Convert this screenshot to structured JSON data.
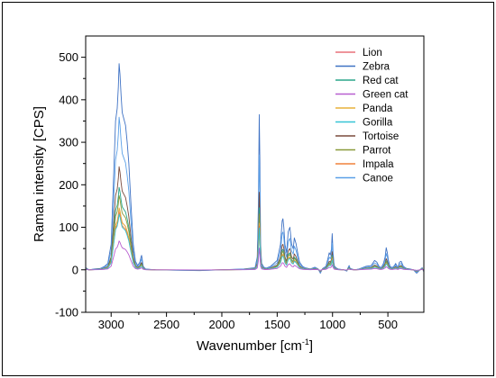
{
  "chart_data": {
    "type": "line",
    "title": "",
    "xlabel": "Wavenumber [cm",
    "xlabel_sup": "-1",
    "xlabel_tail": "]",
    "ylabel": "Raman intensity [CPS]",
    "xlim": [
      3230,
      175
    ],
    "ylim": [
      -100,
      550
    ],
    "x_reversed": true,
    "grid": false,
    "legend_position": "top-right",
    "x_ticks": [
      3000,
      2500,
      2000,
      1500,
      1000,
      500
    ],
    "x_tick_labels": [
      "3000",
      "2500",
      "2000",
      "1500",
      "1000",
      "500"
    ],
    "y_ticks": [
      -100,
      0,
      100,
      200,
      300,
      400,
      500
    ],
    "y_tick_labels": [
      "-100",
      "0",
      "100",
      "200",
      "300",
      "400",
      "500"
    ],
    "series": [
      {
        "name": "Lion",
        "color": "#e8707a",
        "scale": 0.3
      },
      {
        "name": "Zebra",
        "color": "#3f72c4",
        "scale": 1.0
      },
      {
        "name": "Red cat",
        "color": "#2aa58a",
        "scale": 0.4
      },
      {
        "name": "Green cat",
        "color": "#b85fd0",
        "scale": 0.14
      },
      {
        "name": "Panda",
        "color": "#e8b23a",
        "scale": 0.3
      },
      {
        "name": "Gorilla",
        "color": "#36c4d6",
        "scale": 0.27
      },
      {
        "name": "Tortoise",
        "color": "#7a4a3c",
        "scale": 0.5
      },
      {
        "name": "Parrot",
        "color": "#8a9a3a",
        "scale": 0.36
      },
      {
        "name": "Impala",
        "color": "#f0803a",
        "scale": 0.28
      },
      {
        "name": "Canoe",
        "color": "#5aa0e8",
        "scale": 0.74
      }
    ],
    "reference_profile": {
      "series": "Zebra",
      "x": [
        3230,
        3200,
        3150,
        3100,
        3060,
        3030,
        3000,
        2980,
        2960,
        2945,
        2935,
        2928,
        2920,
        2910,
        2900,
        2885,
        2870,
        2855,
        2840,
        2820,
        2800,
        2780,
        2760,
        2740,
        2730,
        2725,
        2720,
        2710,
        2690,
        2600,
        2400,
        2200,
        2000,
        1800,
        1700,
        1680,
        1670,
        1662,
        1656,
        1650,
        1640,
        1620,
        1600,
        1560,
        1500,
        1470,
        1455,
        1448,
        1440,
        1430,
        1415,
        1400,
        1385,
        1370,
        1355,
        1345,
        1330,
        1315,
        1300,
        1290,
        1270,
        1250,
        1200,
        1160,
        1130,
        1110,
        1090,
        1060,
        1040,
        1030,
        1020,
        1010,
        1003,
        995,
        985,
        970,
        950,
        900,
        870,
        860,
        850,
        840,
        800,
        760,
        700,
        650,
        620,
        600,
        580,
        560,
        540,
        525,
        515,
        505,
        495,
        480,
        460,
        440,
        430,
        420,
        410,
        395,
        380,
        360,
        330,
        300,
        270,
        240,
        210,
        190,
        175
      ],
      "y": [
        5,
        0,
        2,
        3,
        8,
        15,
        60,
        200,
        350,
        380,
        430,
        485,
        460,
        410,
        370,
        355,
        340,
        300,
        250,
        150,
        60,
        20,
        10,
        18,
        30,
        34,
        26,
        8,
        2,
        0,
        -1,
        -2,
        0,
        2,
        5,
        30,
        150,
        365,
        250,
        60,
        15,
        6,
        4,
        8,
        22,
        60,
        115,
        120,
        100,
        60,
        40,
        90,
        100,
        60,
        50,
        75,
        62,
        40,
        20,
        15,
        8,
        5,
        2,
        6,
        2,
        -8,
        3,
        8,
        28,
        40,
        35,
        48,
        85,
        40,
        10,
        5,
        2,
        0,
        -3,
        5,
        10,
        3,
        0,
        2,
        8,
        10,
        22,
        18,
        8,
        5,
        15,
        30,
        52,
        40,
        22,
        8,
        5,
        10,
        15,
        10,
        5,
        18,
        20,
        8,
        3,
        2,
        0,
        -8,
        0,
        5,
        -5
      ]
    }
  }
}
